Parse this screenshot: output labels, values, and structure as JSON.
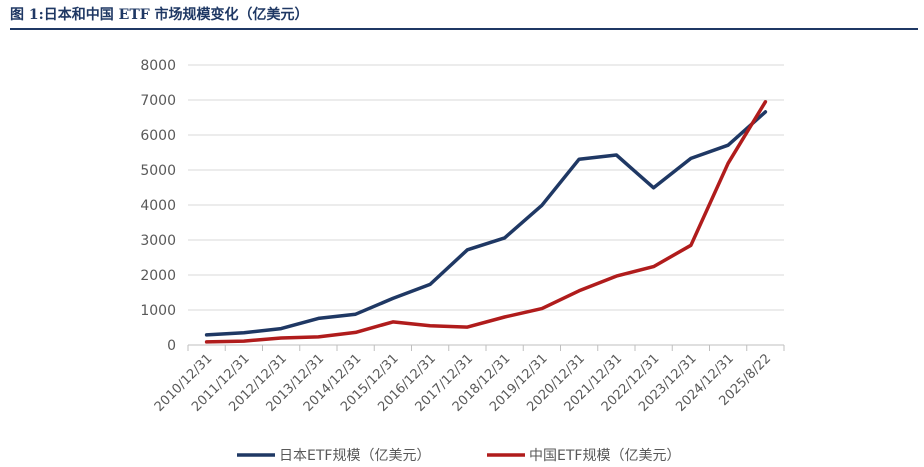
{
  "header": {
    "title": "图 1:日本和中国 ETF 市场规模变化（亿美元）"
  },
  "colors": {
    "title": "#1f3864",
    "japan": "#1f3864",
    "china": "#b01c1c",
    "grid": "#d9d9d9"
  },
  "chart_data": {
    "type": "line",
    "title": "",
    "xlabel": "",
    "ylabel": "",
    "ylim": [
      0,
      8000
    ],
    "yticks": [
      0,
      1000,
      2000,
      3000,
      4000,
      5000,
      6000,
      7000,
      8000
    ],
    "grid": true,
    "legend_position": "bottom",
    "categories": [
      "2010/12/31",
      "2011/12/31",
      "2012/12/31",
      "2013/12/31",
      "2014/12/31",
      "2015/12/31",
      "2016/12/31",
      "2017/12/31",
      "2018/12/31",
      "2019/12/31",
      "2020/12/31",
      "2021/12/31",
      "2022/12/31",
      "2023/12/31",
      "2024/12/31",
      "2025/8/22"
    ],
    "series": [
      {
        "name": "日本ETF规模（亿美元）",
        "values": [
          290,
          350,
          470,
          760,
          880,
          1330,
          1730,
          2720,
          3060,
          3990,
          5310,
          5430,
          4490,
          5330,
          5710,
          6660
        ]
      },
      {
        "name": "中国ETF规模（亿美元）",
        "values": [
          90,
          110,
          200,
          230,
          360,
          660,
          550,
          510,
          800,
          1040,
          1550,
          1970,
          2240,
          2850,
          5190,
          6950
        ]
      }
    ]
  }
}
